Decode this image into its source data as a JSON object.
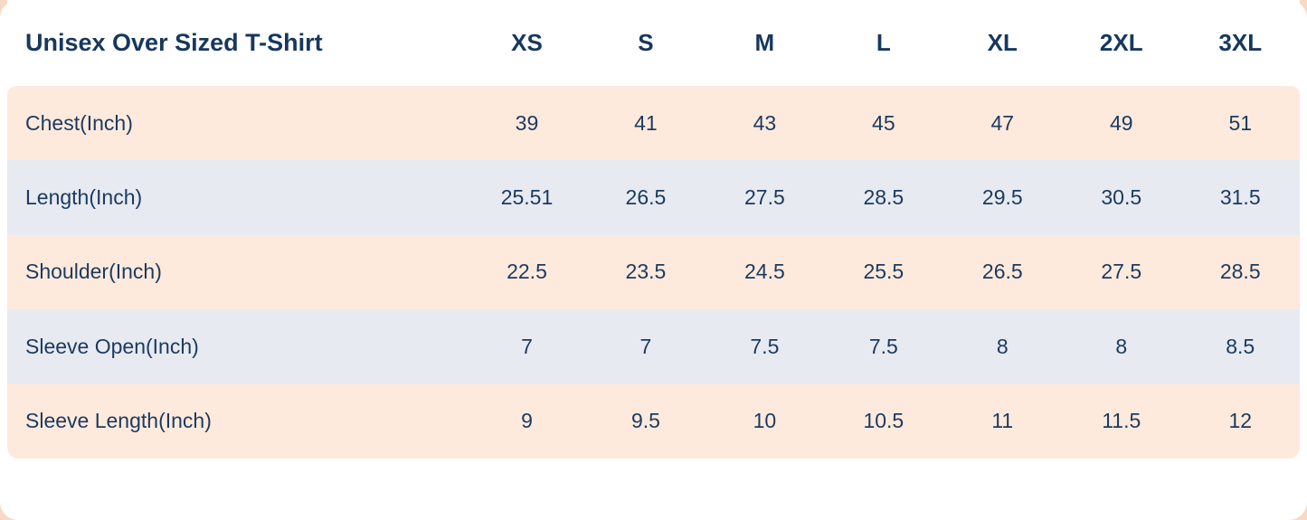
{
  "chart_data": {
    "type": "table",
    "title": "Unisex Over Sized T-Shirt",
    "size_columns": [
      "XS",
      "S",
      "M",
      "L",
      "XL",
      "2XL",
      "3XL"
    ],
    "rows": [
      {
        "label": "Chest(Inch)",
        "values": [
          "39",
          "41",
          "43",
          "45",
          "47",
          "49",
          "51"
        ]
      },
      {
        "label": "Length(Inch)",
        "values": [
          "25.51",
          "26.5",
          "27.5",
          "28.5",
          "29.5",
          "30.5",
          "31.5"
        ]
      },
      {
        "label": "Shoulder(Inch)",
        "values": [
          "22.5",
          "23.5",
          "24.5",
          "25.5",
          "26.5",
          "27.5",
          "28.5"
        ]
      },
      {
        "label": "Sleeve Open(Inch)",
        "values": [
          "7",
          "7",
          "7.5",
          "7.5",
          "8",
          "8",
          "8.5"
        ]
      },
      {
        "label": "Sleeve Length(Inch)",
        "values": [
          "9",
          "9.5",
          "10",
          "10.5",
          "11",
          "11.5",
          "12"
        ]
      }
    ],
    "units": "Inch"
  },
  "colors": {
    "stripe_peach": "#fdeadd",
    "stripe_blue_gray": "#e7eaf1",
    "text_navy": "#1b3a5f",
    "title_navy": "#17375e",
    "card_background": "#ffffff",
    "page_background": "#f8d9c6"
  }
}
